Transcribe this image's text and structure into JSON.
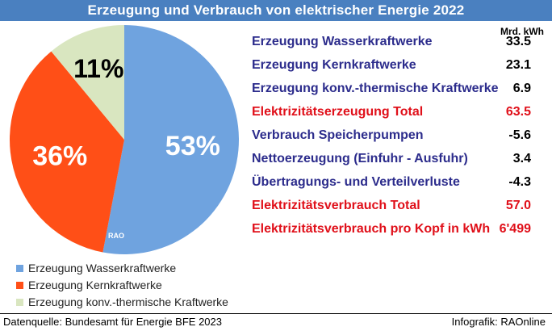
{
  "title": "Erzeugung und Verbrauch von elektrischer Energie 2022",
  "unit": "Mrd. kWh",
  "colors": {
    "header": "#4a80c0",
    "blue_text": "#2c2c8c",
    "red_text": "#e0101a",
    "slice_hydro": "#6fa3df",
    "slice_nuclear": "#ff4f17",
    "slice_thermal": "#d9e6c0"
  },
  "chart_data": {
    "type": "pie",
    "slices": [
      {
        "label": "Erzeugung Wasserkraftwerke",
        "value": 53,
        "pct_label": "53%"
      },
      {
        "label": "Erzeugung Kernkraftwerke",
        "value": 36,
        "pct_label": "36%"
      },
      {
        "label": "Erzeugung konv.-thermische Kraftwerke",
        "value": 11,
        "pct_label": "11%"
      }
    ],
    "legend_position": "bottom-left",
    "watermark": "RAO"
  },
  "table": {
    "rows": [
      {
        "label": "Erzeugung Wasserkraftwerke",
        "value": "33.5",
        "style": "blue"
      },
      {
        "label": "Erzeugung Kernkraftwerke",
        "value": "23.1",
        "style": "blue"
      },
      {
        "label": "Erzeugung konv.-thermische Kraftwerke",
        "value": "6.9",
        "style": "blue"
      },
      {
        "label": "Elektrizitätserzeugung Total",
        "value": "63.5",
        "style": "red"
      },
      {
        "label": "Verbrauch Speicherpumpen",
        "value": "-5.6",
        "style": "blue"
      },
      {
        "label": "Nettoerzeugung (Einfuhr - Ausfuhr)",
        "value": "3.4",
        "style": "blue"
      },
      {
        "label": "Übertragungs- und Verteilverluste",
        "value": "-4.3",
        "style": "blue"
      },
      {
        "label": "Elektrizitätsverbrauch Total",
        "value": "57.0",
        "style": "red"
      },
      {
        "label": "Elektrizitätsverbrauch pro Kopf in kWh",
        "value": "6'499",
        "style": "red"
      }
    ]
  },
  "footer": {
    "source": "Datenquelle: Bundesamt für Energie BFE 2023",
    "credit": "Infografik: RAOnline"
  }
}
